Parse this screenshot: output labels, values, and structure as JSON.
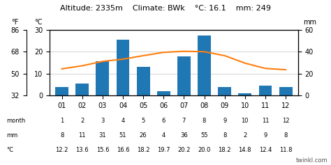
{
  "chart_data": {
    "type": "bar",
    "title": "Altitude: 2335m    Climate: BWk    °C: 16.1    mm: 249",
    "categories": [
      "01",
      "02",
      "03",
      "04",
      "05",
      "06",
      "07",
      "08",
      "09",
      "10",
      "11",
      "12"
    ],
    "series": [
      {
        "type": "bar",
        "values": [
          8,
          11,
          31,
          51,
          26,
          4,
          36,
          55,
          8,
          2,
          9,
          8
        ]
      },
      {
        "type": "line",
        "axis": "y2",
        "values": [
          12.2,
          13.6,
          15.6,
          16.6,
          18.2,
          19.7,
          20.2,
          20.0,
          18.2,
          14.8,
          12.4,
          11.8
        ]
      }
    ],
    "ylim": [
      0,
      60
    ],
    "yticks": [
      0,
      20,
      40,
      60
    ],
    "y_label": "mm",
    "y2lim": [
      0,
      30
    ],
    "y2ticks": [
      0,
      10,
      20,
      30
    ],
    "y2_label": "°C",
    "y3ticks": [
      {
        "value": 0,
        "label": "32"
      },
      {
        "value": 10,
        "label": "50"
      },
      {
        "value": 20,
        "label": "68"
      },
      {
        "value": 30,
        "label": "86"
      }
    ],
    "y3_label": "°F",
    "grid": true,
    "table": {
      "labels": [
        "month",
        "mm",
        "°C"
      ],
      "rows": [
        [
          1,
          2,
          3,
          4,
          5,
          6,
          7,
          8,
          9,
          10,
          11,
          12
        ],
        [
          8,
          11,
          31,
          51,
          26,
          4,
          36,
          55,
          8,
          2,
          9,
          8
        ],
        [
          12.2,
          13.6,
          15.6,
          16.6,
          18.2,
          19.7,
          20.2,
          20.0,
          18.2,
          14.8,
          12.4,
          11.8
        ]
      ]
    },
    "annotations": [
      "twinkl.com"
    ]
  }
}
